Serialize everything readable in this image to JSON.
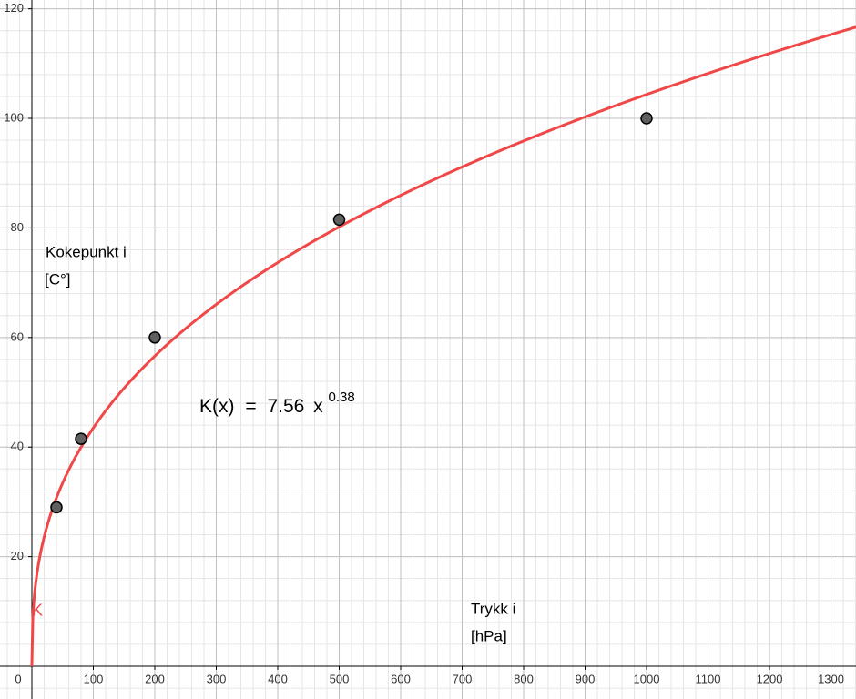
{
  "chart_data": {
    "type": "scatter",
    "x": [
      40,
      80,
      200,
      500,
      1000
    ],
    "values": [
      29,
      41.5,
      60,
      81.5,
      100
    ],
    "color": "#606060",
    "xlim": [
      -51.85,
      1340.7
    ],
    "ylim": [
      -5.98,
      121.6
    ],
    "xticks": [
      0,
      100,
      200,
      300,
      400,
      500,
      600,
      700,
      800,
      900,
      1000,
      1100,
      1200,
      1300
    ],
    "yticks": [
      20,
      40,
      60,
      80,
      100,
      120
    ],
    "grid": true,
    "minor_grid": true,
    "function": {
      "name": "K(x)",
      "operator": "=",
      "coefficient": 7.56,
      "variable": "x",
      "exponent": 0.38,
      "curve_label": "K",
      "color": "#f04848"
    },
    "ylabel": [
      "Kokepunkt i",
      "[C°]"
    ],
    "xlabel": [
      "Trykk i",
      "[hPa]"
    ]
  }
}
